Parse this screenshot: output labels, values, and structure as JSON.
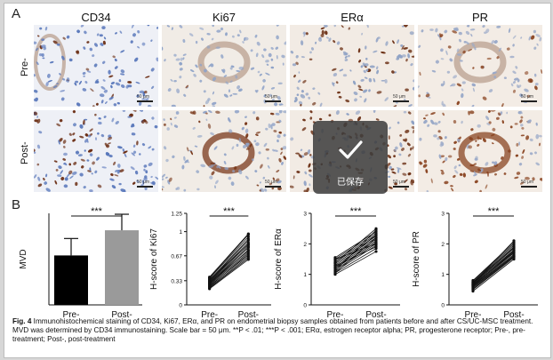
{
  "panel_a": {
    "letter": "A",
    "columns": [
      "CD34",
      "Ki67",
      "ERα",
      "PR"
    ],
    "rows": [
      "Pre-",
      "Post-"
    ],
    "scale_label": "50 μm"
  },
  "panel_b": {
    "letter": "B",
    "significance": "***"
  },
  "chart_data": [
    {
      "type": "bar",
      "categories": [
        "Pre-",
        "Post-"
      ],
      "values": [
        10.8,
        16.3
      ],
      "errors": [
        3.7,
        3.5
      ],
      "ylabel": "MVD",
      "ylim": [
        0,
        20
      ],
      "yticks": [],
      "bar_colors": [
        "#000000",
        "#9a9a9a"
      ],
      "significance": "***"
    },
    {
      "type": "line",
      "categories": [
        "Pre-",
        "Post-"
      ],
      "ylabel": "H-score of Ki67",
      "ylim": [
        0,
        1.25
      ],
      "yticks": [
        "0",
        "0.33",
        "0.67",
        "1",
        "1.25"
      ],
      "significance": "***",
      "pairs": [
        [
          0.22,
          0.62
        ],
        [
          0.24,
          0.66
        ],
        [
          0.25,
          0.7
        ],
        [
          0.27,
          0.72
        ],
        [
          0.28,
          0.75
        ],
        [
          0.29,
          0.78
        ],
        [
          0.3,
          0.8
        ],
        [
          0.31,
          0.83
        ],
        [
          0.32,
          0.85
        ],
        [
          0.33,
          0.88
        ],
        [
          0.34,
          0.9
        ],
        [
          0.36,
          0.93
        ],
        [
          0.37,
          0.96
        ],
        [
          0.26,
          0.68
        ],
        [
          0.3,
          0.74
        ],
        [
          0.35,
          0.82
        ],
        [
          0.23,
          0.64
        ],
        [
          0.38,
          0.97
        ]
      ]
    },
    {
      "type": "line",
      "categories": [
        "Pre-",
        "Post-"
      ],
      "ylabel": "H-score of ERα",
      "ylim": [
        0,
        3
      ],
      "yticks": [
        "0",
        "1",
        "2",
        "3"
      ],
      "significance": "***",
      "pairs": [
        [
          1.0,
          1.75
        ],
        [
          1.05,
          1.85
        ],
        [
          1.1,
          1.95
        ],
        [
          1.15,
          2.0
        ],
        [
          1.2,
          2.05
        ],
        [
          1.25,
          2.1
        ],
        [
          1.3,
          2.15
        ],
        [
          1.35,
          2.2
        ],
        [
          1.4,
          2.25
        ],
        [
          1.45,
          2.3
        ],
        [
          1.5,
          2.35
        ],
        [
          1.55,
          2.4
        ],
        [
          1.12,
          2.45
        ],
        [
          1.28,
          1.9
        ],
        [
          1.38,
          2.5
        ],
        [
          1.05,
          2.2
        ],
        [
          1.5,
          2.0
        ],
        [
          1.2,
          2.3
        ]
      ]
    },
    {
      "type": "line",
      "categories": [
        "Pre-",
        "Post-"
      ],
      "ylabel": "H-score of PR",
      "ylim": [
        0,
        3
      ],
      "yticks": [
        "0",
        "1",
        "2",
        "3"
      ],
      "significance": "***",
      "pairs": [
        [
          0.45,
          1.5
        ],
        [
          0.5,
          1.55
        ],
        [
          0.55,
          1.6
        ],
        [
          0.6,
          1.65
        ],
        [
          0.62,
          1.7
        ],
        [
          0.65,
          1.75
        ],
        [
          0.68,
          1.8
        ],
        [
          0.7,
          1.85
        ],
        [
          0.72,
          1.9
        ],
        [
          0.75,
          1.95
        ],
        [
          0.78,
          2.0
        ],
        [
          0.8,
          2.05
        ],
        [
          0.58,
          1.62
        ],
        [
          0.66,
          1.72
        ],
        [
          0.74,
          1.88
        ],
        [
          0.52,
          1.58
        ],
        [
          0.7,
          2.1
        ],
        [
          0.63,
          1.78
        ]
      ]
    }
  ],
  "caption": {
    "lead": "Fig. 4",
    "text": " Immunohistochemical staining of CD34, Ki67, ERα, and PR on endometrial biopsy samples obtained from patients before and after CS/UC-MSC treatment. MVD was determined by CD34 immunostaining. Scale bar = 50 μm. **P < .01; ***P < .001; ERα, estrogen receptor alpha; PR, progesterone receptor; Pre-, pre-treatment; Post-, post-treatment"
  },
  "toast": {
    "text": "已保存",
    "icon": "checkmark-icon"
  },
  "colors": {
    "hematoxylin": "#8fa9cf",
    "dab": "#7a3a1c",
    "background": "#d7d7d7"
  }
}
